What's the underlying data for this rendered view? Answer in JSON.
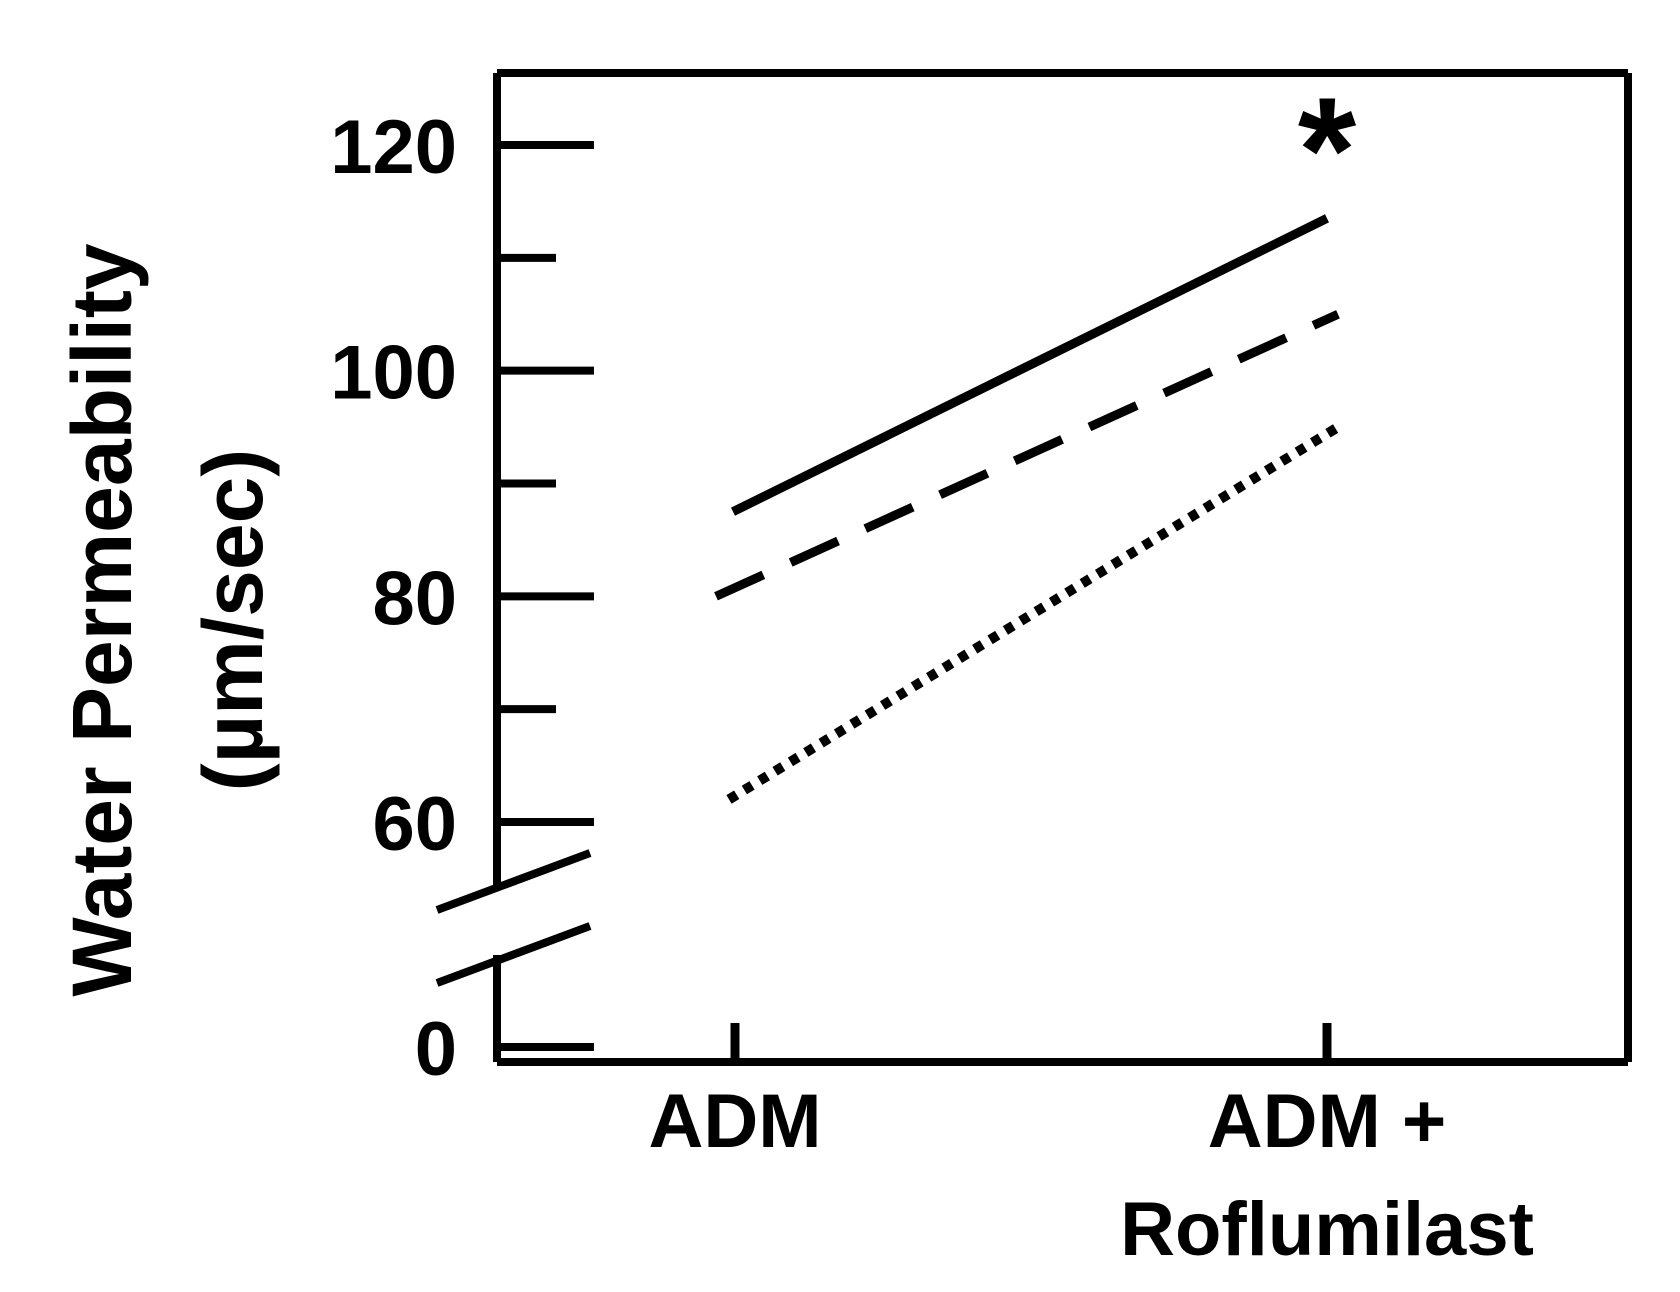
{
  "chart_data": {
    "type": "line",
    "title": "",
    "xlabel": "",
    "ylabel": "Water Permeability",
    "ylabel_unit": "(µm/sec)",
    "categories": [
      "ADM",
      "ADM +\nRoflumilast"
    ],
    "category_label_lines": [
      [
        "ADM"
      ],
      [
        "ADM +",
        "Roflumilast"
      ]
    ],
    "yticks": [
      0,
      60,
      80,
      100,
      120
    ],
    "minor_yticks": [
      70,
      90,
      110
    ],
    "ylim_upper": [
      55,
      125
    ],
    "axis_break": true,
    "grid": false,
    "legend": "none",
    "annotations": [
      {
        "text": "*",
        "category": "ADM +\nRoflumilast",
        "y": 121
      }
    ],
    "series": [
      {
        "values": [
          87.5,
          113.5
        ],
        "line_style": "solid"
      },
      {
        "values": [
          80,
          105
        ],
        "line_style": "dashed"
      },
      {
        "values": [
          62,
          95
        ],
        "line_style": "dotted"
      }
    ],
    "colors": {
      "line": "#000000",
      "background": "#ffffff"
    }
  }
}
